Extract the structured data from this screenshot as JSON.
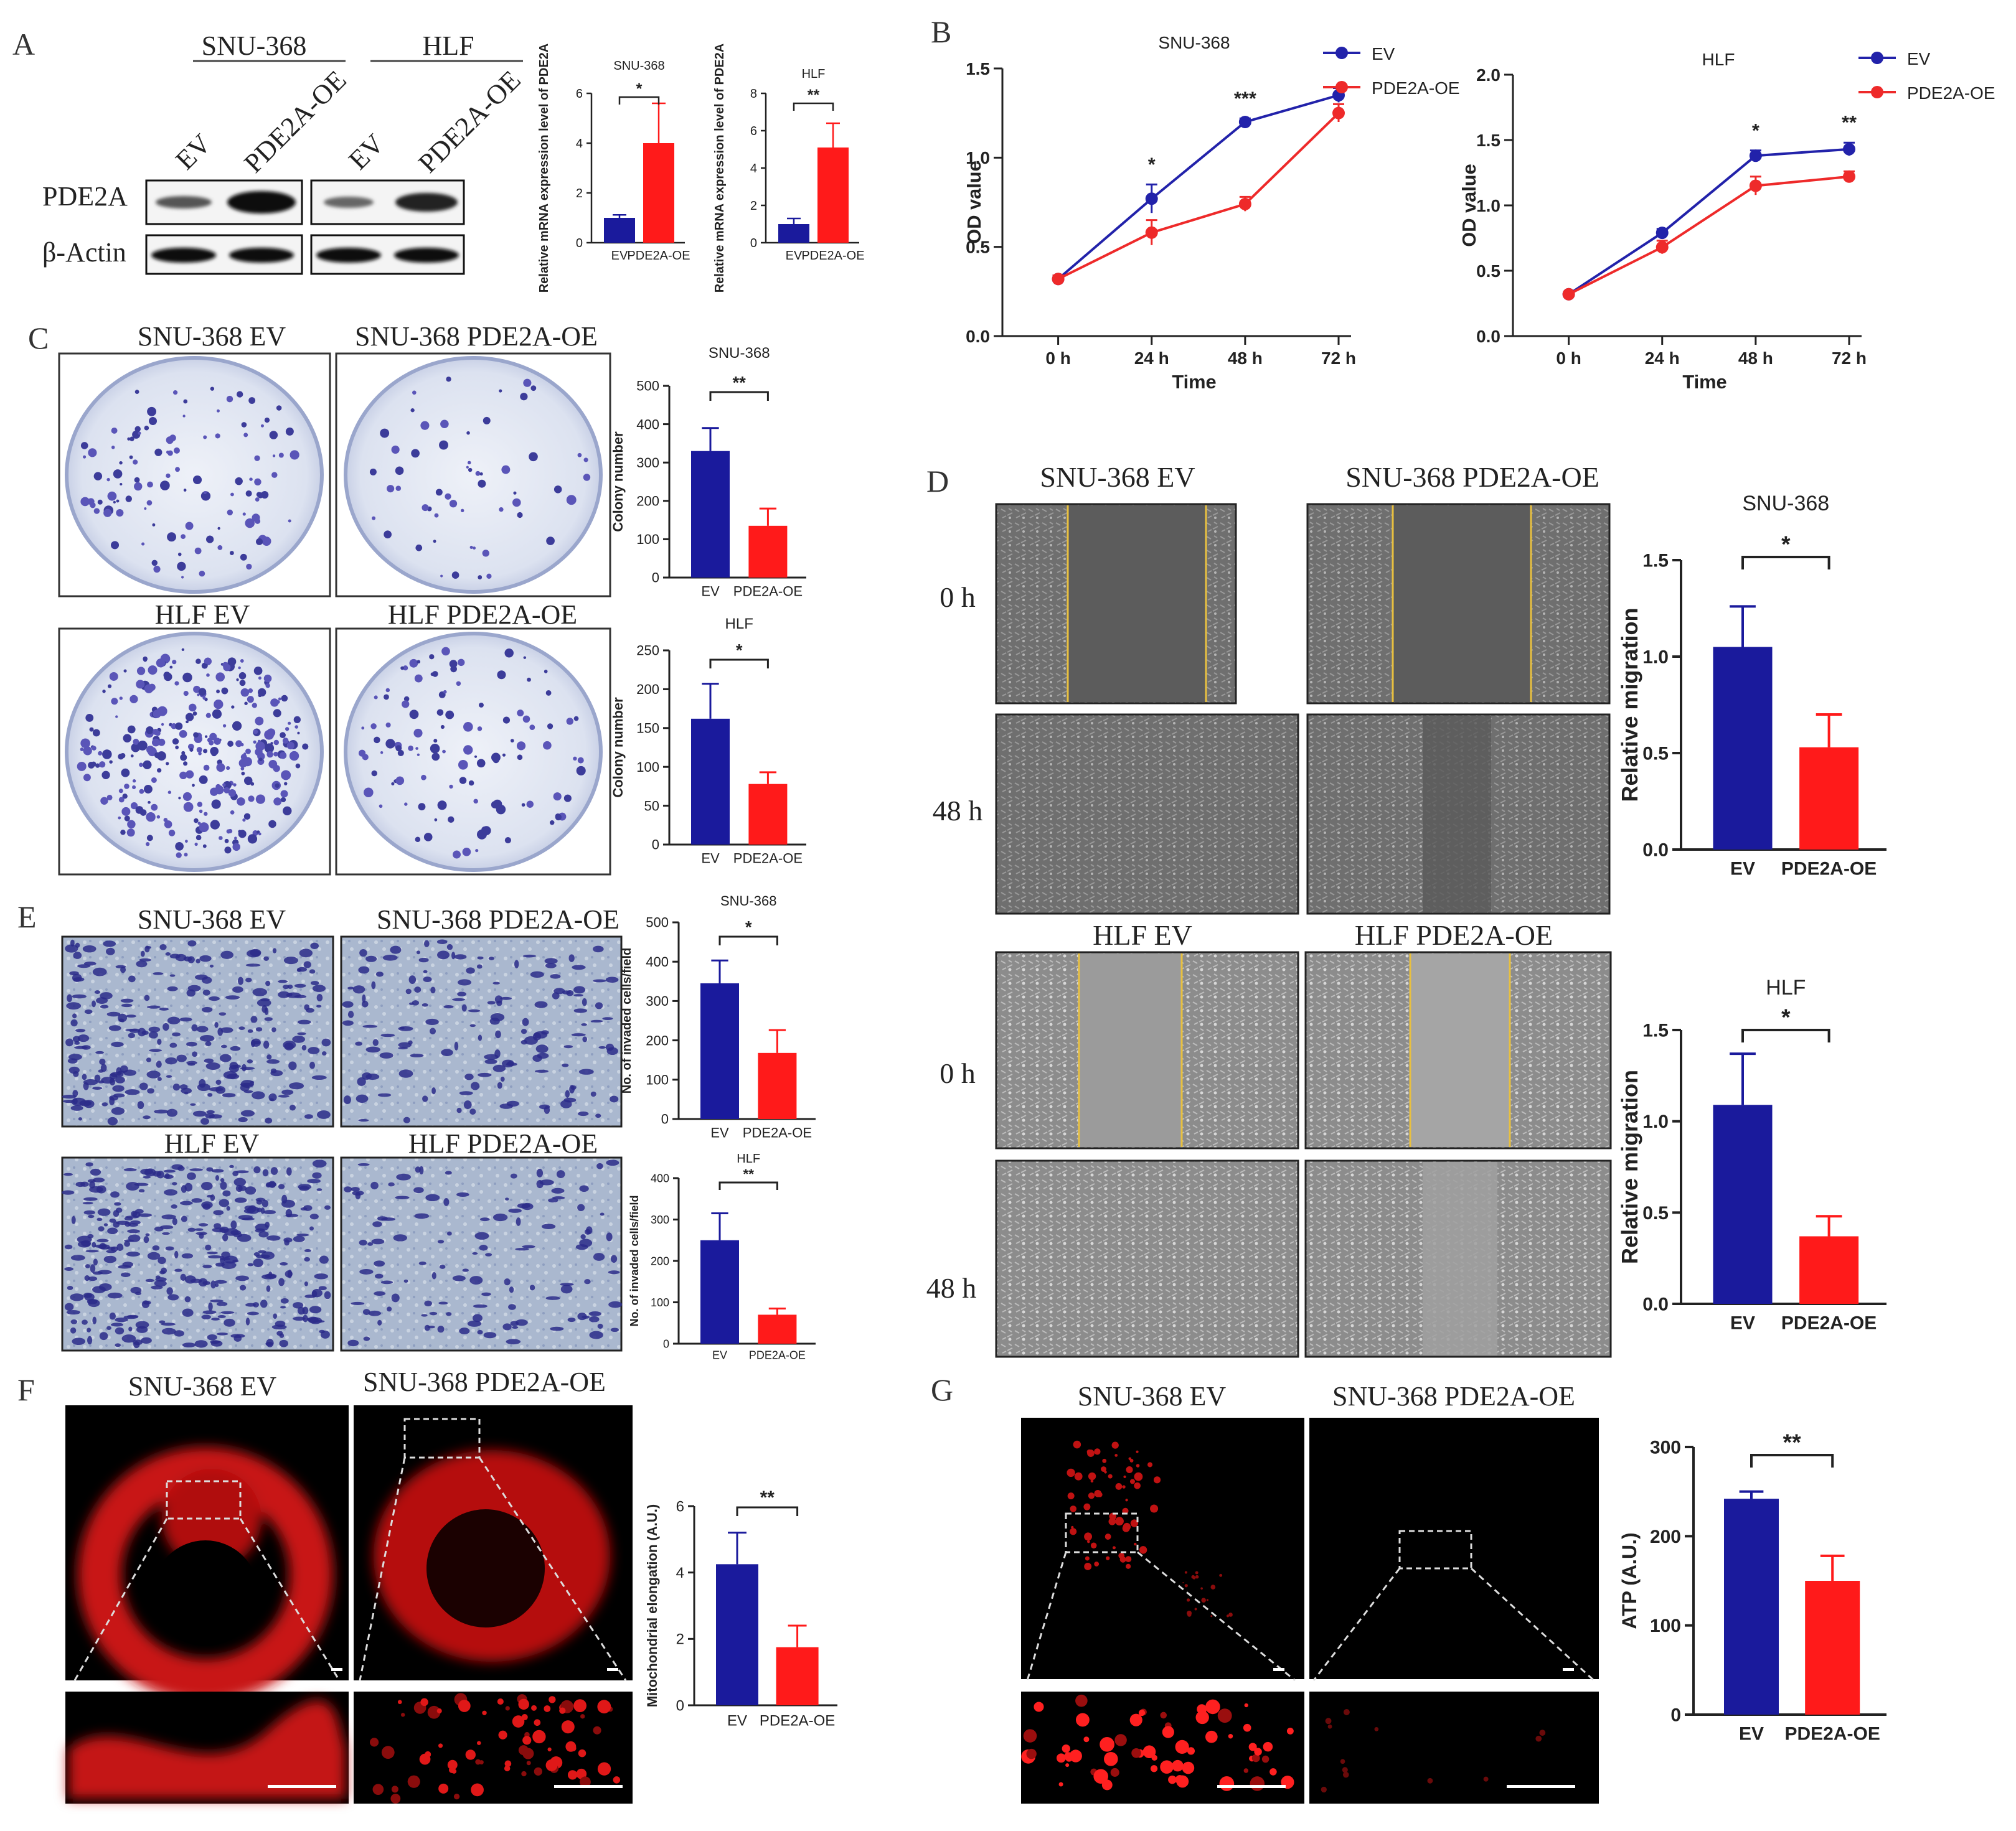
{
  "panel_letters": {
    "A": "A",
    "B": "B",
    "C": "C",
    "D": "D",
    "E": "E",
    "F": "F",
    "G": "G"
  },
  "panelA": {
    "cell_lines": [
      "SNU-368",
      "HLF"
    ],
    "lanes": [
      "EV",
      "PDE2A-OE",
      "EV",
      "PDE2A-OE"
    ],
    "proteins": [
      "PDE2A",
      "β-Actin"
    ]
  },
  "panelC": {
    "labels": [
      "SNU-368 EV",
      "SNU-368 PDE2A-OE",
      "HLF EV",
      "HLF PDE2A-OE"
    ]
  },
  "panelD": {
    "labels": [
      "SNU-368 EV",
      "SNU-368 PDE2A-OE",
      "HLF EV",
      "HLF PDE2A-OE"
    ],
    "times": [
      "0 h",
      "48 h",
      "0 h",
      "48 h"
    ]
  },
  "panelE": {
    "labels": [
      "SNU-368 EV",
      "SNU-368 PDE2A-OE",
      "HLF EV",
      "HLF PDE2A-OE"
    ]
  },
  "panelF": {
    "labels": [
      "SNU-368 EV",
      "SNU-368 PDE2A-OE"
    ]
  },
  "panelG": {
    "labels": [
      "SNU-368 EV",
      "SNU-368 PDE2A-OE"
    ]
  },
  "colors": {
    "ev": "#1a1a9c",
    "oe": "#ff1a1a",
    "ev_line": "#2222aa",
    "oe_line": "#ee2a2a"
  },
  "chart_data": [
    {
      "id": "a1",
      "type": "bar",
      "title": "SNU-368",
      "categories": [
        "EV",
        "PDE2A-OE"
      ],
      "values": [
        1.0,
        4.0
      ],
      "errors": [
        0.12,
        1.6
      ],
      "ylabel": "Relative mRNA expression level of PDE2A",
      "ylim": [
        0,
        6
      ],
      "yticks": [
        0,
        2,
        4,
        6
      ],
      "sig": "*"
    },
    {
      "id": "a2",
      "type": "bar",
      "title": "HLF",
      "categories": [
        "EV",
        "PDE2A-OE"
      ],
      "values": [
        1.0,
        5.1
      ],
      "errors": [
        0.3,
        1.3
      ],
      "ylabel": "Relative mRNA expression level of PDE2A",
      "ylim": [
        0,
        8
      ],
      "yticks": [
        0,
        2,
        4,
        6,
        8
      ],
      "sig": "**"
    },
    {
      "id": "b1",
      "type": "line",
      "title": "SNU-368",
      "xlabel": "Time",
      "ylabel": "OD value",
      "x": [
        "0 h",
        "24 h",
        "48 h",
        "72 h"
      ],
      "ylim": [
        0,
        1.5
      ],
      "yticks": [
        "0.0",
        "0.5",
        "1.0",
        "1.5"
      ],
      "series": [
        {
          "name": "EV",
          "values": [
            0.32,
            0.77,
            1.2,
            1.35
          ],
          "errors": [
            0.02,
            0.08,
            0.02,
            0.04
          ]
        },
        {
          "name": "PDE2A-OE",
          "values": [
            0.32,
            0.58,
            0.74,
            1.25
          ],
          "errors": [
            0.02,
            0.07,
            0.04,
            0.05
          ]
        }
      ],
      "sig": [
        "",
        "*",
        "***",
        ""
      ]
    },
    {
      "id": "b2",
      "type": "line",
      "title": "HLF",
      "xlabel": "Time",
      "ylabel": "OD value",
      "x": [
        "0 h",
        "24 h",
        "48 h",
        "72 h"
      ],
      "ylim": [
        0,
        2.0
      ],
      "yticks": [
        "0.0",
        "0.5",
        "1.0",
        "1.5",
        "2.0"
      ],
      "series": [
        {
          "name": "EV",
          "values": [
            0.32,
            0.79,
            1.38,
            1.43
          ],
          "errors": [
            0.02,
            0.03,
            0.04,
            0.05
          ]
        },
        {
          "name": "PDE2A-OE",
          "values": [
            0.32,
            0.68,
            1.15,
            1.22
          ],
          "errors": [
            0.02,
            0.05,
            0.07,
            0.04
          ]
        }
      ],
      "sig": [
        "",
        "",
        "*",
        "**"
      ]
    },
    {
      "id": "c1",
      "type": "bar",
      "title": "SNU-368",
      "categories": [
        "EV",
        "PDE2A-OE"
      ],
      "values": [
        330,
        135
      ],
      "errors": [
        60,
        45
      ],
      "ylabel": "Colony number",
      "ylim": [
        0,
        500
      ],
      "yticks": [
        0,
        100,
        200,
        300,
        400,
        500
      ],
      "sig": "**"
    },
    {
      "id": "c2",
      "type": "bar",
      "title": "HLF",
      "categories": [
        "EV",
        "PDE2A-OE"
      ],
      "values": [
        162,
        78
      ],
      "errors": [
        45,
        15
      ],
      "ylabel": "Colony number",
      "ylim": [
        0,
        250
      ],
      "yticks": [
        0,
        50,
        100,
        150,
        200,
        250
      ],
      "sig": "*"
    },
    {
      "id": "d1",
      "type": "bar",
      "title": "SNU-368",
      "categories": [
        "EV",
        "PDE2A-OE"
      ],
      "values": [
        1.05,
        0.53
      ],
      "errors": [
        0.21,
        0.17
      ],
      "ylabel": "Relative migration",
      "ylim": [
        0,
        1.5
      ],
      "yticks": [
        "0.0",
        "0.5",
        "1.0",
        "1.5"
      ],
      "sig": "*"
    },
    {
      "id": "d2",
      "type": "bar",
      "title": "HLF",
      "categories": [
        "EV",
        "PDE2A-OE"
      ],
      "values": [
        1.09,
        0.37
      ],
      "errors": [
        0.28,
        0.11
      ],
      "ylabel": "Relative migration",
      "ylim": [
        0,
        1.5
      ],
      "yticks": [
        "0.0",
        "0.5",
        "1.0",
        "1.5"
      ],
      "sig": "*"
    },
    {
      "id": "e1",
      "type": "bar",
      "title": "SNU-368",
      "categories": [
        "EV",
        "PDE2A-OE"
      ],
      "values": [
        345,
        168
      ],
      "errors": [
        58,
        58
      ],
      "ylabel": "No. of invaded cells/field",
      "ylim": [
        0,
        500
      ],
      "yticks": [
        0,
        100,
        200,
        300,
        400,
        500
      ],
      "sig": "*"
    },
    {
      "id": "e2",
      "type": "bar",
      "title": "HLF",
      "categories": [
        "EV",
        "PDE2A-OE"
      ],
      "values": [
        250,
        70
      ],
      "errors": [
        65,
        15
      ],
      "ylabel": "No. of invaded cells/field",
      "ylim": [
        0,
        400
      ],
      "yticks": [
        0,
        100,
        200,
        300,
        400
      ],
      "sig": "**"
    },
    {
      "id": "f1",
      "type": "bar",
      "title": "",
      "categories": [
        "EV",
        "PDE2A-OE"
      ],
      "values": [
        4.25,
        1.75
      ],
      "errors": [
        0.95,
        0.65
      ],
      "ylabel": "Mitochondrial elongation (A.U.)",
      "ylim": [
        0,
        6
      ],
      "yticks": [
        0,
        2,
        4,
        6
      ],
      "sig": "**"
    },
    {
      "id": "g1",
      "type": "bar",
      "title": "",
      "categories": [
        "EV",
        "PDE2A-OE"
      ],
      "values": [
        242,
        150
      ],
      "errors": [
        8,
        28
      ],
      "ylabel": "ATP (A.U.)",
      "ylim": [
        0,
        300
      ],
      "yticks": [
        0,
        100,
        200,
        300
      ],
      "sig": "**"
    }
  ]
}
